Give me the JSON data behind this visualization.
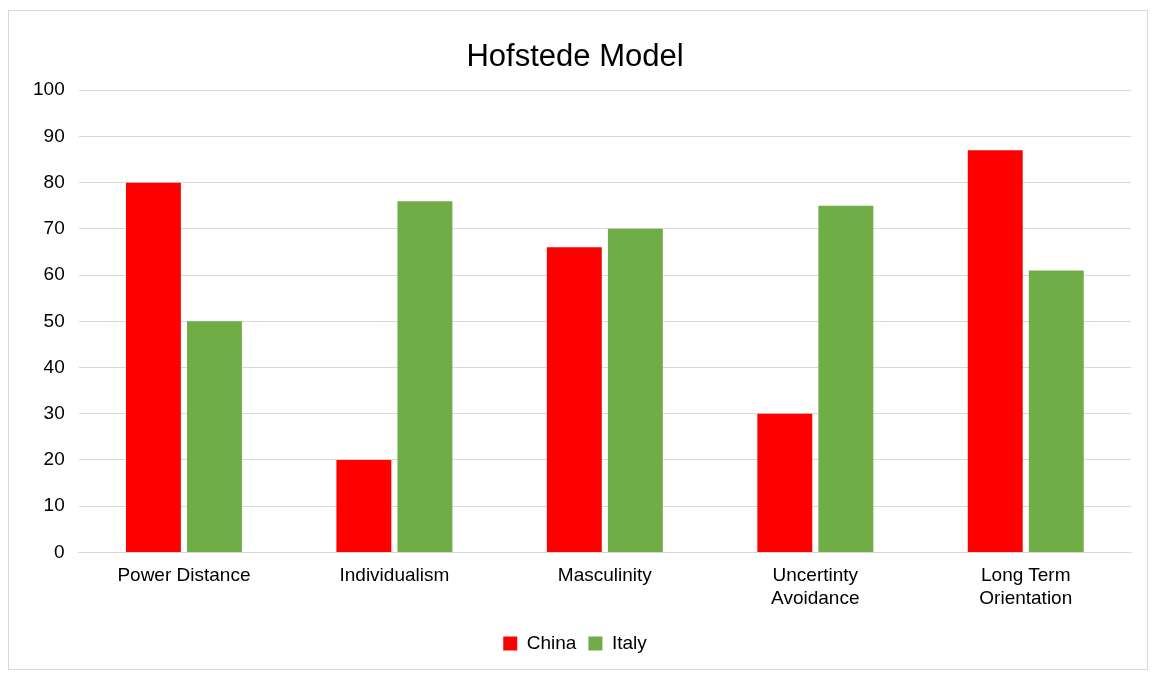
{
  "chart_data": {
    "type": "bar",
    "title": "Hofstede Model",
    "categories": [
      "Power Distance",
      "Individualism",
      "Masculinity",
      "Uncertinty Avoidance",
      "Long Term Orientation"
    ],
    "series": [
      {
        "name": "China",
        "color": "#ff0000",
        "values": [
          80,
          20,
          66,
          30,
          87
        ]
      },
      {
        "name": "Italy",
        "color": "#70ad47",
        "values": [
          50,
          76,
          70,
          75,
          61
        ]
      }
    ],
    "ylim": [
      0,
      100
    ],
    "yticks": [
      0,
      10,
      20,
      30,
      40,
      50,
      60,
      70,
      80,
      90,
      100
    ],
    "grid": "y",
    "legend": "bottom"
  }
}
